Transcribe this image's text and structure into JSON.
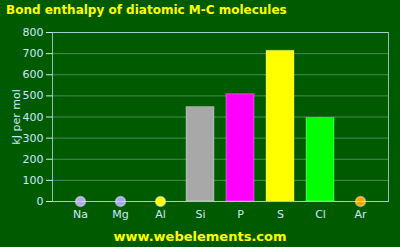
{
  "chart_data": {
    "type": "bar",
    "title": "Bond enthalpy of diatomic M-C molecules",
    "y_label": "kJ per mol",
    "categories": [
      "Na",
      "Mg",
      "Al",
      "Si",
      "P",
      "S",
      "Cl",
      "Ar"
    ],
    "values": [
      null,
      null,
      null,
      447,
      507.5,
      713.3,
      394.9,
      null
    ],
    "colors": [
      "#b8a8f0",
      "#a8a8f0",
      "#ffff00",
      "#a8a8a8",
      "#ff00ff",
      "#ffff00",
      "#00ff00",
      "#ffa500"
    ],
    "ylim": [
      0,
      800
    ],
    "yticks": [
      0,
      100,
      200,
      300,
      400,
      500,
      600,
      700,
      800
    ],
    "grid": true,
    "annotations": [
      "www.webelements.com"
    ]
  }
}
